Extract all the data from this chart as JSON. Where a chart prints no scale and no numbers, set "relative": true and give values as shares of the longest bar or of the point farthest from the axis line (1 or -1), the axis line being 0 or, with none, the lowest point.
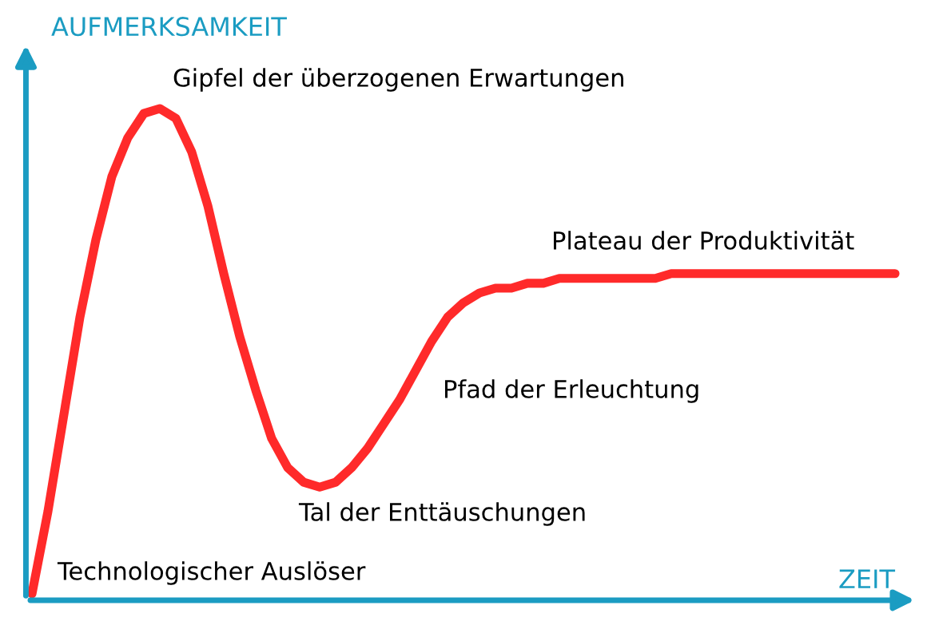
{
  "chart_data": {
    "type": "line",
    "relative": true,
    "tick_labels": false,
    "xlabel": "ZEIT",
    "ylabel": "AUFMERKSAMKEIT",
    "categories": [
      null,
      null,
      null,
      null,
      null,
      null,
      null,
      null,
      null,
      null,
      null,
      null,
      null,
      null,
      null,
      null,
      null,
      null,
      null,
      null,
      null,
      null,
      null,
      null,
      null,
      null,
      null,
      null,
      null,
      null,
      null,
      null,
      null,
      null,
      null,
      null,
      null,
      null,
      null,
      null,
      null,
      null,
      null,
      null,
      null,
      null,
      null,
      null,
      null,
      null,
      null,
      null,
      null,
      null,
      null
    ],
    "series": [
      {
        "color": "#ff2a2a",
        "values": [
          0.0,
          0.17,
          0.37,
          0.57,
          0.73,
          0.86,
          0.94,
          0.99,
          1.0,
          0.98,
          0.91,
          0.8,
          0.66,
          0.53,
          0.42,
          0.32,
          0.26,
          0.23,
          0.22,
          0.23,
          0.26,
          0.3,
          0.35,
          0.4,
          0.46,
          0.52,
          0.57,
          0.6,
          0.62,
          0.63,
          0.63,
          0.64,
          0.64,
          0.65,
          0.65,
          0.65,
          0.65,
          0.65,
          0.65,
          0.65,
          0.66,
          0.66,
          0.66,
          0.66,
          0.66,
          0.66,
          0.66,
          0.66,
          0.66,
          0.66,
          0.66,
          0.66,
          0.66,
          0.66,
          0.66
        ]
      }
    ],
    "annotations": [
      "Gipfel der überzogenen Erwartungen",
      "Plateau der Produktivität",
      "Pfad der Erleuchtung",
      "Tal der Enttäuschungen",
      "Technologischer Auslöser"
    ]
  }
}
